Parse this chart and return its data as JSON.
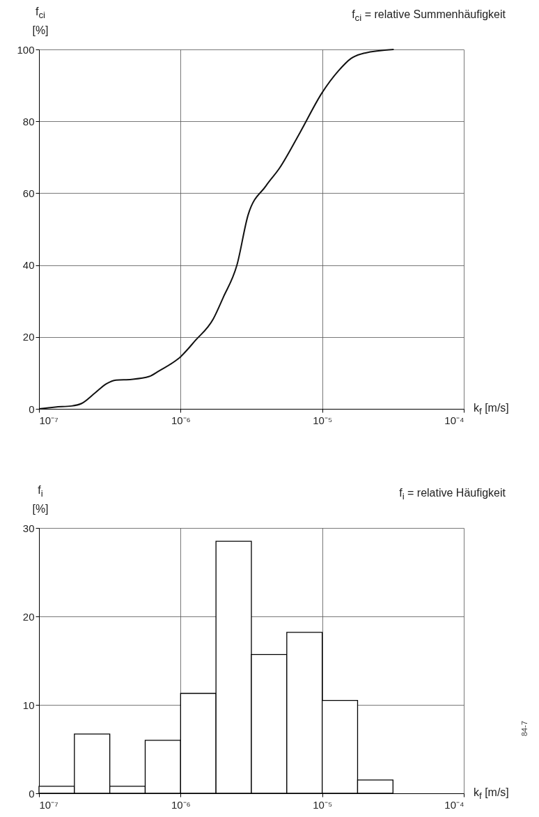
{
  "chart_data": [
    {
      "type": "line",
      "title": "f$_{ci}$ = relative Summenhäufigkeit",
      "ylabel": "f$_{ci}$ [%]",
      "xlabel": "k$_{f}$ [m/s]",
      "log": "x",
      "x": [
        1e-07,
        1.3e-07,
        1.7e-07,
        2e-07,
        2.5e-07,
        3e-07,
        3.5e-07,
        4.5e-07,
        6e-07,
        7e-07,
        1e-06,
        1.27e-06,
        1.7e-06,
        2e-06,
        2.5e-06,
        3e-06,
        4e-06,
        5e-06,
        7e-06,
        1e-05,
        1.3e-05,
        1.6e-05,
        2e-05,
        3.2e-05
      ],
      "series": [
        {
          "color": "#111111",
          "values": [
            0,
            0.5,
            0.8,
            1.5,
            4.5,
            7,
            8,
            8.2,
            9,
            10.5,
            14.5,
            19,
            25,
            31,
            40,
            54,
            62,
            67,
            77,
            88,
            94,
            97.5,
            99,
            100
          ]
        }
      ],
      "xlim": [
        1e-07,
        0.0001
      ],
      "xticks": [
        {
          "value": 1e-07,
          "label": "10⁻⁷"
        },
        {
          "value": 1e-06,
          "label": "10⁻⁶"
        },
        {
          "value": 1e-05,
          "label": "10⁻⁵"
        },
        {
          "value": 0.0001,
          "label": "10⁻⁴"
        }
      ],
      "ylim": [
        0,
        100
      ],
      "yticks": [
        0,
        20,
        40,
        60,
        80,
        100
      ],
      "grid": true,
      "marker": "none",
      "line_style": "solid"
    },
    {
      "type": "histogram",
      "title": "f$_{i}$ = relative Häufigkeit",
      "ylabel": "f$_{i}$ [%]",
      "xlabel": "k$_{f}$ [m/s]",
      "log": "x",
      "bins": [
        1e-07,
        1.778e-07,
        3.162e-07,
        5.623e-07,
        1e-06,
        1.778e-06,
        3.162e-06,
        5.623e-06,
        1e-05,
        1.778e-05,
        3.162e-05
      ],
      "values": [
        0.8,
        6.7,
        0.8,
        6.0,
        11.3,
        28.5,
        15.7,
        18.2,
        10.5,
        1.5
      ],
      "xlim": [
        1e-07,
        0.0001
      ],
      "xticks": [
        {
          "value": 1e-07,
          "label": "10⁻⁷"
        },
        {
          "value": 1e-06,
          "label": "10⁻⁶"
        },
        {
          "value": 1e-05,
          "label": "10⁻⁵"
        },
        {
          "value": 0.0001,
          "label": "10⁻⁴"
        }
      ],
      "ylim": [
        0,
        30
      ],
      "yticks": [
        0,
        10,
        20,
        30
      ],
      "grid": true,
      "annotations": [
        "84-7"
      ]
    }
  ]
}
